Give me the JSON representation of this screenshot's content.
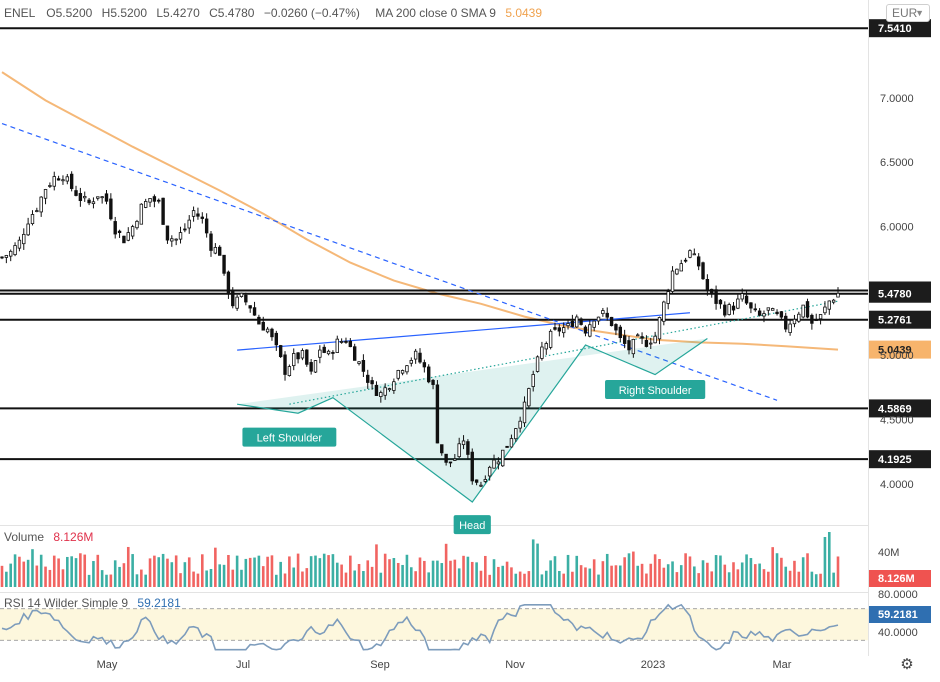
{
  "header": {
    "symbol": "ENEL",
    "open_key": "O",
    "open": "5.5200",
    "high_key": "H",
    "high": "5.5200",
    "low_key": "L",
    "low": "5.4270",
    "close_key": "C",
    "close": "5.4780",
    "change": "−0.0260 (−0.47%)",
    "ma_label": "MA 200 close 0 SMA 9",
    "ma_value": "5.0439"
  },
  "currency": "EUR",
  "volume_panel": {
    "label": "Volume",
    "value": "8.126M",
    "axis_tick": "40M",
    "last_badge": "8.126M"
  },
  "rsi_panel": {
    "label": "RSI 14 Wilder Simple 9",
    "value": "59.2181",
    "ticks": [
      "80.0000",
      "40.0000"
    ],
    "last_badge": "59.2181"
  },
  "colors": {
    "up": "#26a69a",
    "down": "#ef5350",
    "ma": "#f5b878",
    "pattern": "#26a69a",
    "trend_blue": "#2962ff",
    "rsi": "#7d9cbc",
    "rsi_band": "#fdf7dd"
  },
  "chart_data": {
    "type": "candlestick",
    "price_axis": {
      "ylim": [
        3.72,
        7.76
      ],
      "ticks": [
        "7.0000",
        "6.5000",
        "6.0000",
        "5.0000",
        "4.5000",
        "4.0000"
      ]
    },
    "x_labels": [
      "May",
      "Jul",
      "Sep",
      "Nov",
      "2023",
      "Mar"
    ],
    "levels": [
      {
        "value": 7.541,
        "label": "7.5410",
        "style": "dark"
      },
      {
        "value": 5.5031,
        "label": "5.5031",
        "style": "dark"
      },
      {
        "value": 5.478,
        "label": "5.4780",
        "style": "dark"
      },
      {
        "value": 5.2761,
        "label": "5.2761",
        "style": "dark"
      },
      {
        "value": 5.0439,
        "label": "5.0439",
        "style": "ma"
      },
      {
        "value": 4.5869,
        "label": "4.5869",
        "style": "dark"
      },
      {
        "value": 4.1925,
        "label": "4.1925",
        "style": "dark"
      }
    ],
    "close_path": [
      [
        0,
        5.76
      ],
      [
        2,
        5.8
      ],
      [
        4,
        5.88
      ],
      [
        6,
        6.05
      ],
      [
        8,
        6.15
      ],
      [
        10,
        6.3
      ],
      [
        12,
        6.38
      ],
      [
        14,
        6.4
      ],
      [
        16,
        6.3
      ],
      [
        18,
        6.22
      ],
      [
        20,
        6.18
      ],
      [
        22,
        6.25
      ],
      [
        24,
        6.2
      ],
      [
        26,
        5.98
      ],
      [
        28,
        5.9
      ],
      [
        30,
        6.0
      ],
      [
        32,
        6.15
      ],
      [
        34,
        6.22
      ],
      [
        36,
        6.18
      ],
      [
        38,
        5.92
      ],
      [
        40,
        5.9
      ],
      [
        42,
        5.98
      ],
      [
        44,
        6.12
      ],
      [
        46,
        6.05
      ],
      [
        48,
        5.85
      ],
      [
        50,
        5.8
      ],
      [
        51,
        5.6
      ],
      [
        53,
        5.4
      ],
      [
        55,
        5.45
      ],
      [
        57,
        5.38
      ],
      [
        59,
        5.25
      ],
      [
        61,
        5.2
      ],
      [
        63,
        5.05
      ],
      [
        65,
        4.88
      ],
      [
        67,
        4.98
      ],
      [
        69,
        5.0
      ],
      [
        71,
        4.85
      ],
      [
        73,
        5.05
      ],
      [
        75,
        5.0
      ],
      [
        77,
        5.1
      ],
      [
        79,
        5.12
      ],
      [
        81,
        5.0
      ],
      [
        83,
        4.88
      ],
      [
        85,
        4.75
      ],
      [
        87,
        4.7
      ],
      [
        89,
        4.78
      ],
      [
        91,
        4.88
      ],
      [
        93,
        4.95
      ],
      [
        95,
        5.0
      ],
      [
        97,
        4.9
      ],
      [
        99,
        4.75
      ],
      [
        100,
        4.35
      ],
      [
        102,
        4.15
      ],
      [
        104,
        4.2
      ],
      [
        106,
        4.35
      ],
      [
        108,
        4.05
      ],
      [
        110,
        4.0
      ],
      [
        112,
        4.15
      ],
      [
        114,
        4.2
      ],
      [
        116,
        4.3
      ],
      [
        118,
        4.45
      ],
      [
        120,
        4.6
      ],
      [
        122,
        4.85
      ],
      [
        124,
        5.05
      ],
      [
        126,
        5.15
      ],
      [
        128,
        5.2
      ],
      [
        130,
        5.22
      ],
      [
        132,
        5.3
      ],
      [
        134,
        5.2
      ],
      [
        136,
        5.3
      ],
      [
        138,
        5.32
      ],
      [
        140,
        5.25
      ],
      [
        142,
        5.12
      ],
      [
        144,
        5.05
      ],
      [
        146,
        5.12
      ],
      [
        148,
        5.1
      ],
      [
        150,
        5.15
      ],
      [
        152,
        5.4
      ],
      [
        154,
        5.65
      ],
      [
        156,
        5.72
      ],
      [
        158,
        5.8
      ],
      [
        160,
        5.7
      ],
      [
        162,
        5.5
      ],
      [
        164,
        5.42
      ],
      [
        166,
        5.35
      ],
      [
        168,
        5.38
      ],
      [
        170,
        5.45
      ],
      [
        172,
        5.35
      ],
      [
        174,
        5.3
      ],
      [
        176,
        5.35
      ],
      [
        178,
        5.3
      ],
      [
        180,
        5.22
      ],
      [
        182,
        5.3
      ],
      [
        184,
        5.38
      ],
      [
        186,
        5.25
      ],
      [
        188,
        5.3
      ],
      [
        190,
        5.42
      ],
      [
        192,
        5.48
      ]
    ],
    "candles_count": 193,
    "ma_curve": [
      [
        0,
        7.2
      ],
      [
        10,
        6.98
      ],
      [
        20,
        6.8
      ],
      [
        30,
        6.62
      ],
      [
        40,
        6.45
      ],
      [
        50,
        6.28
      ],
      [
        60,
        6.1
      ],
      [
        70,
        5.9
      ],
      [
        80,
        5.72
      ],
      [
        90,
        5.58
      ],
      [
        100,
        5.48
      ],
      [
        110,
        5.4
      ],
      [
        120,
        5.3
      ],
      [
        130,
        5.22
      ],
      [
        140,
        5.17
      ],
      [
        150,
        5.12
      ],
      [
        160,
        5.1
      ],
      [
        170,
        5.09
      ],
      [
        180,
        5.07
      ],
      [
        192,
        5.0439
      ]
    ],
    "trendlines": [
      {
        "kind": "dashed",
        "from": [
          0,
          6.8
        ],
        "to": [
          178,
          4.65
        ]
      },
      {
        "kind": "solid",
        "from": [
          54,
          5.04
        ],
        "to": [
          158,
          5.33
        ]
      },
      {
        "kind": "dotted",
        "from": [
          66,
          4.62
        ],
        "to": [
          192,
          5.42
        ]
      }
    ],
    "head_shoulders": {
      "points": [
        [
          54,
          4.62
        ],
        [
          68,
          4.55
        ],
        [
          76,
          4.67
        ],
        [
          108,
          3.86
        ],
        [
          134,
          5.08
        ],
        [
          150,
          4.85
        ],
        [
          162,
          5.13
        ]
      ],
      "labels": [
        {
          "text": "Left Shoulder",
          "at": [
            66,
            4.36
          ]
        },
        {
          "text": "Head",
          "at": [
            108,
            3.68
          ]
        },
        {
          "text": "Right Shoulder",
          "at": [
            150,
            4.73
          ]
        }
      ]
    },
    "rsi": {
      "ylim": [
        20,
        100
      ],
      "band": [
        40,
        80
      ],
      "last": 59.2181
    }
  }
}
